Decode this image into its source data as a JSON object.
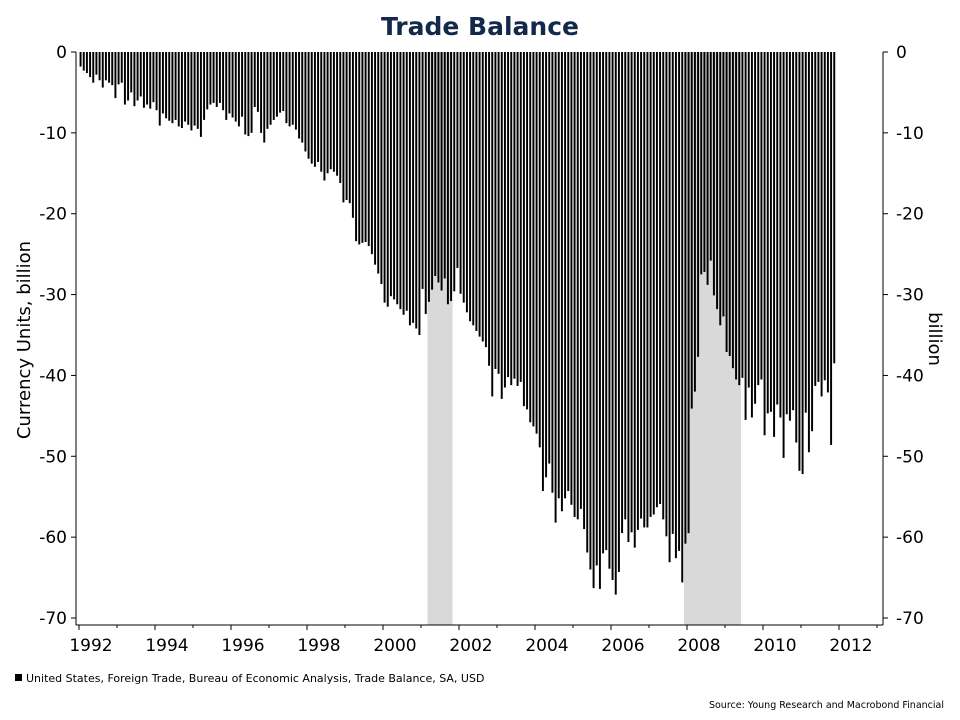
{
  "chart_data": {
    "type": "bar",
    "title": "Trade Balance",
    "ylabel_left": "Currency Units, billion",
    "ylabel_right": "billion",
    "ylim": [
      -70,
      0
    ],
    "yticks": [
      0,
      -10,
      -20,
      -30,
      -40,
      -50,
      -60,
      -70
    ],
    "ytick_labels": [
      "0",
      "-10",
      "-20",
      "-30",
      "-40",
      "-50",
      "-60",
      "-70"
    ],
    "xlim": [
      1992,
      2013.1
    ],
    "xticks": [
      1992,
      1994,
      1996,
      1998,
      2000,
      2002,
      2004,
      2006,
      2008,
      2010,
      2012
    ],
    "xtick_labels": [
      "1992",
      "1994",
      "1996",
      "1998",
      "2000",
      "2002",
      "2004",
      "2006",
      "2008",
      "2010",
      "2012"
    ],
    "recessions": [
      {
        "start": 2001.17,
        "end": 2001.83
      },
      {
        "start": 2007.92,
        "end": 2009.42
      }
    ],
    "series": [
      {
        "name": "United States, Foreign Trade, Bureau of Economic Analysis, Trade Balance, SA, USD",
        "color": "#000000",
        "start": 1992.0,
        "step_months": 1,
        "values": [
          -1.8,
          -2.3,
          -2.6,
          -3.1,
          -3.8,
          -2.8,
          -3.5,
          -4.4,
          -3.5,
          -3.8,
          -4.1,
          -5.7,
          -4.0,
          -3.8,
          -6.5,
          -6.0,
          -5.0,
          -6.7,
          -6.0,
          -5.5,
          -6.9,
          -6.5,
          -7.0,
          -6.2,
          -7.2,
          -9.1,
          -7.6,
          -8.2,
          -8.5,
          -8.8,
          -8.4,
          -9.2,
          -9.4,
          -8.6,
          -9.0,
          -9.7,
          -9.1,
          -9.5,
          -10.5,
          -8.4,
          -7.1,
          -6.5,
          -6.3,
          -6.8,
          -6.3,
          -7.2,
          -8.4,
          -7.6,
          -8.1,
          -8.6,
          -9.2,
          -8.0,
          -10.2,
          -10.4,
          -10.0,
          -6.8,
          -7.4,
          -10.0,
          -11.2,
          -9.5,
          -9.0,
          -8.4,
          -8.0,
          -7.5,
          -7.3,
          -8.8,
          -9.2,
          -9.0,
          -9.6,
          -10.7,
          -11.2,
          -12.3,
          -13.2,
          -13.8,
          -14.2,
          -13.6,
          -14.8,
          -15.9,
          -15.0,
          -14.5,
          -14.8,
          -15.3,
          -16.2,
          -18.6,
          -18.3,
          -18.7,
          -20.5,
          -23.4,
          -23.8,
          -23.6,
          -23.5,
          -24.0,
          -25.0,
          -26.3,
          -27.4,
          -28.7,
          -31.0,
          -31.5,
          -30.2,
          -30.6,
          -31.2,
          -31.8,
          -32.5,
          -32.0,
          -33.8,
          -33.5,
          -34.2,
          -35.0,
          -29.3,
          -32.4,
          -30.9,
          -29.4,
          -27.7,
          -28.5,
          -29.5,
          -28.0,
          -31.2,
          -30.8,
          -29.6,
          -26.7,
          -29.9,
          -31.0,
          -32.2,
          -33.3,
          -33.8,
          -34.5,
          -35.2,
          -35.8,
          -36.5,
          -38.8,
          -42.6,
          -39.2,
          -39.8,
          -42.9,
          -41.5,
          -40.2,
          -41.2,
          -40.4,
          -41.3,
          -40.8,
          -43.8,
          -44.2,
          -45.8,
          -46.3,
          -47.2,
          -48.9,
          -54.3,
          -52.6,
          -50.9,
          -54.5,
          -58.2,
          -55.2,
          -56.8,
          -55.2,
          -54.3,
          -56.0,
          -57.5,
          -57.8,
          -56.5,
          -59.0,
          -61.9,
          -64.0,
          -66.3,
          -63.5,
          -66.4,
          -62.0,
          -61.6,
          -63.9,
          -65.3,
          -67.1,
          -64.3,
          -59.5,
          -57.8,
          -60.6,
          -59.4,
          -61.3,
          -59.1,
          -57.7,
          -58.8,
          -58.8,
          -57.5,
          -57.2,
          -56.3,
          -55.9,
          -57.8,
          -59.9,
          -63.1,
          -59.6,
          -62.6,
          -61.7,
          -65.6,
          -60.8,
          -59.5,
          -44.1,
          -42.0,
          -37.7,
          -27.5,
          -27.2,
          -28.8,
          -25.8,
          -30.1,
          -31.8,
          -33.8,
          -32.7,
          -37.1,
          -37.6,
          -39.1,
          -40.5,
          -41.2,
          -40.3,
          -45.5,
          -41.5,
          -45.2,
          -43.5,
          -41.2,
          -40.5,
          -47.4,
          -44.7,
          -44.5,
          -47.6,
          -43.6,
          -45.2,
          -50.2,
          -44.8,
          -45.6,
          -44.3,
          -48.3,
          -51.8,
          -52.2,
          -44.6,
          -49.5,
          -46.9,
          -41.3,
          -40.8,
          -42.6,
          -40.6,
          -42.1,
          -48.6,
          -38.5
        ]
      }
    ],
    "legend_position": "bottom-left",
    "grid": false
  },
  "legend": {
    "label": "United States, Foreign Trade, Bureau of Economic Analysis, Trade Balance, SA, USD"
  },
  "source": "Source: Young Research and Macrobond Financial",
  "colors": {
    "title": "#12294b",
    "bars": "#000000",
    "recession_shade": "#d9d9d9"
  }
}
